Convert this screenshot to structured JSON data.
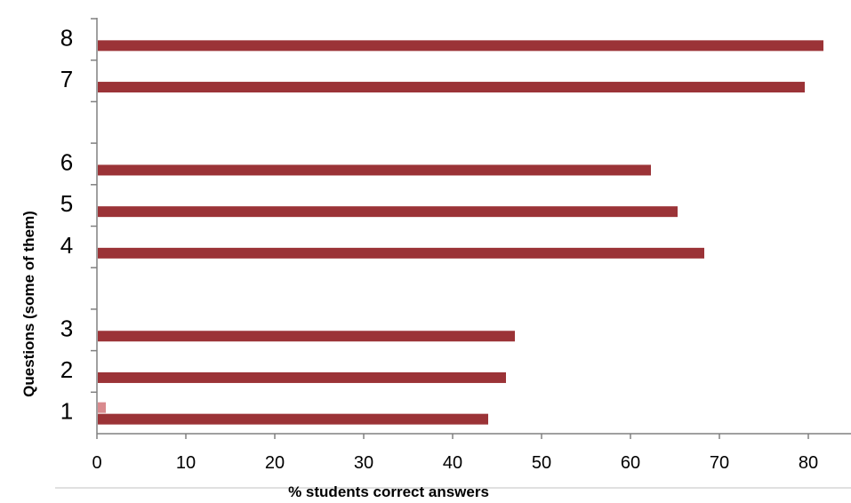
{
  "chart_data": {
    "type": "bar",
    "orientation": "horizontal",
    "xlabel": "% students correct answers",
    "ylabel": "Questions (some of them)",
    "xlim": [
      0,
      84
    ],
    "x_ticks": [
      "0",
      "10",
      "20",
      "30",
      "40",
      "50",
      "60",
      "70",
      "80"
    ],
    "grid": false,
    "legend": "none",
    "colors": {
      "bar": "#9b3337",
      "marker": "#d98a8e",
      "axis": "#808080"
    },
    "categories": [
      "1",
      "2",
      "3",
      "",
      "4",
      "5",
      "6",
      "",
      "7",
      "8"
    ],
    "series": [
      {
        "values": [
          44,
          46,
          47,
          null,
          68.3,
          65.3,
          62.3,
          null,
          79.6,
          81.7
        ]
      },
      {
        "values": [
          1,
          null,
          null,
          null,
          null,
          null,
          null,
          null,
          null,
          null
        ]
      }
    ]
  }
}
